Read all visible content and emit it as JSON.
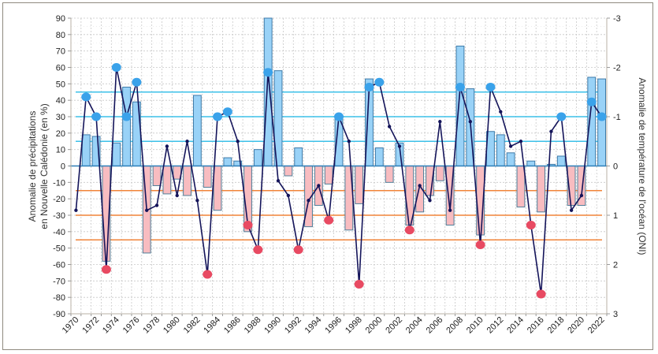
{
  "chart_data": {
    "type": "bar+line",
    "title": "",
    "xlabel": "",
    "ylabel_left_lines": [
      "Anomalie de précipitations",
      "en Nouvelle Calédonie (en %)"
    ],
    "ylabel_right": "Anomalie de température de l'océan (ONI)",
    "ylim_left": [
      -90,
      90
    ],
    "ylim_right": [
      3,
      -3
    ],
    "yticks_left": [
      "90",
      "80",
      "70",
      "60",
      "50",
      "40",
      "30",
      "20",
      "10",
      "0",
      "-10",
      "-20",
      "-30",
      "-40",
      "-50",
      "-60",
      "-70",
      "-80",
      "-90"
    ],
    "yticks_right": [
      "-3",
      "-2",
      "-1",
      "0",
      "1",
      "2",
      "3"
    ],
    "xtick_labels": [
      "1970",
      "1972",
      "1974",
      "1976",
      "1978",
      "1980",
      "1982",
      "1984",
      "1986",
      "1988",
      "1990",
      "1992",
      "1994",
      "1996",
      "1998",
      "2000",
      "2002",
      "2004",
      "2006",
      "2008",
      "2010",
      "2012",
      "2014",
      "2016",
      "2018",
      "2020",
      "2022"
    ],
    "grid": true,
    "years": [
      1970,
      1971,
      1972,
      1973,
      1974,
      1975,
      1976,
      1977,
      1978,
      1979,
      1980,
      1981,
      1982,
      1983,
      1984,
      1985,
      1986,
      1987,
      1988,
      1989,
      1990,
      1991,
      1992,
      1993,
      1994,
      1995,
      1996,
      1997,
      1998,
      1999,
      2000,
      2001,
      2002,
      2003,
      2004,
      2005,
      2006,
      2007,
      2008,
      2009,
      2010,
      2011,
      2012,
      2013,
      2014,
      2015,
      2016,
      2017,
      2018,
      2019,
      2020,
      2021,
      2022
    ],
    "series": [
      {
        "name": "Anomalie de précipitations (%)",
        "type": "bar",
        "axis": "left",
        "values": [
          null,
          19,
          18,
          -58,
          14,
          48,
          39,
          -53,
          -12,
          -17,
          -8,
          -18,
          43,
          -13,
          -27,
          5,
          3,
          -40,
          10,
          90,
          58,
          -6,
          11,
          -37,
          -24,
          -11,
          30,
          -39,
          -23,
          53,
          11,
          -10,
          14,
          -36,
          -28,
          -18,
          -9,
          -36,
          73,
          47,
          -42,
          21,
          19,
          8,
          -25,
          3,
          -28,
          1,
          6,
          -24,
          -24,
          54,
          53
        ]
      },
      {
        "name": "ONI",
        "type": "line",
        "axis": "right",
        "values": [
          0.9,
          -1.4,
          -1.0,
          2.1,
          -2.0,
          -1.0,
          -1.7,
          0.9,
          0.8,
          -0.4,
          0.6,
          -0.5,
          0.7,
          2.2,
          -1.0,
          -1.1,
          -0.5,
          1.2,
          1.7,
          -1.9,
          0.3,
          0.6,
          1.7,
          0.7,
          0.4,
          1.1,
          -1.0,
          -0.5,
          2.4,
          -1.6,
          -1.7,
          -0.8,
          -0.4,
          1.3,
          0.4,
          0.7,
          -0.9,
          0.9,
          -1.6,
          -0.9,
          1.6,
          -1.6,
          -1.1,
          -0.4,
          -0.5,
          1.2,
          2.6,
          -0.7,
          -1.0,
          0.9,
          0.6,
          -1.3,
          -1.0
        ],
        "markers": [
          "s",
          "b",
          "b",
          "r",
          "b",
          "b",
          "b",
          "s",
          "s",
          "s",
          "s",
          "s",
          "s",
          "r",
          "b",
          "b",
          "s",
          "r",
          "r",
          "b",
          "s",
          "s",
          "r",
          "s",
          "s",
          "r",
          "b",
          "s",
          "r",
          "b",
          "b",
          "s",
          "s",
          "r",
          "s",
          "s",
          "s",
          "s",
          "b",
          "s",
          "r",
          "b",
          "s",
          "s",
          "s",
          "r",
          "r",
          "s",
          "b",
          "s",
          "s",
          "b",
          "b"
        ]
      }
    ],
    "reference_lines_left": [
      45,
      30,
      15,
      -15,
      -30,
      -45
    ],
    "colors": {
      "bar_positive": "#99d2f7",
      "bar_positive_edge": "#3d7aa8",
      "bar_negative": "#f8bcc0",
      "bar_negative_edge": "#4f7f9a",
      "line": "#14145a",
      "marker_la_nina": "#3aa2ea",
      "marker_el_nino": "#e84a62",
      "ref_cool": "#3cc0e8",
      "ref_warm": "#f0843a",
      "zero_line": "#2d7fb8",
      "grid": "#c8c8c8"
    }
  }
}
